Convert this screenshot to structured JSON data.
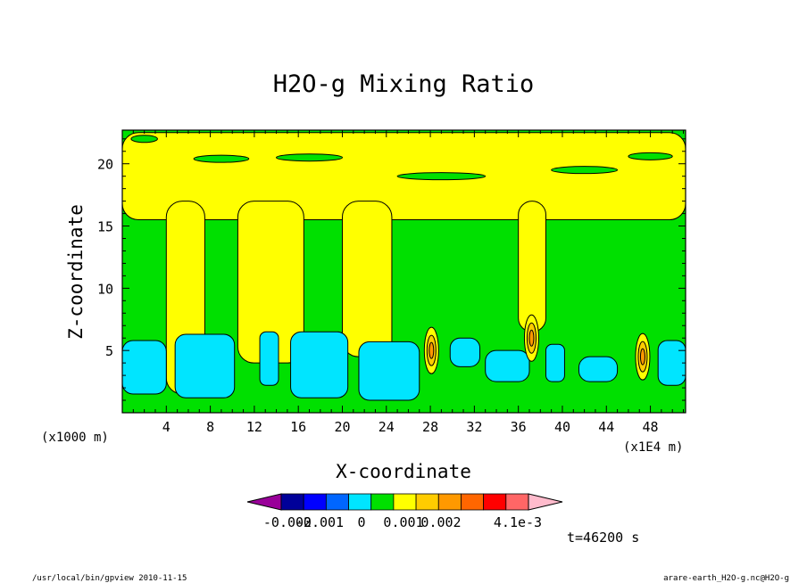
{
  "chart_data": {
    "type": "heatmap",
    "title": "H2O-g Mixing Ratio",
    "xlabel": "X-coordinate",
    "ylabel": "Z-coordinate",
    "x_unit": "(x1E4 m)",
    "y_unit": "(x1000 m)",
    "xlim": [
      0,
      51.2
    ],
    "ylim": [
      0,
      22.7
    ],
    "x_ticks": [
      4,
      8,
      12,
      16,
      20,
      24,
      28,
      32,
      36,
      40,
      44,
      48
    ],
    "y_ticks": [
      5,
      10,
      15,
      20
    ],
    "x_tick_labels": [
      "4",
      "8",
      "12",
      "16",
      "20",
      "24",
      "28",
      "32",
      "36",
      "40",
      "44",
      "48"
    ],
    "y_tick_labels": [
      "5",
      "10",
      "15",
      "20"
    ],
    "colorbar": {
      "labels": [
        {
          "text": "-0.002",
          "value": -0.002
        },
        {
          "text": "-0.001",
          "value": -0.001
        },
        {
          "text": "0",
          "value": 0
        },
        {
          "text": "0.001",
          "value": 0.001
        },
        {
          "text": "0.002",
          "value": 0.002
        },
        {
          "text": "4.1e-3",
          "value": 0.0041
        }
      ],
      "colors": [
        "#990099",
        "#000099",
        "#0000ff",
        "#0066ff",
        "#00e5ff",
        "#00e000",
        "#ffff00",
        "#ffcc00",
        "#ff9900",
        "#ff6600",
        "#ff0000",
        "#ff6666",
        "#ffbbcc"
      ]
    },
    "regions": [
      {
        "level": "background",
        "color": "#00e000",
        "description_level": 0
      },
      {
        "level": "cyan",
        "color": "#00e5ff",
        "blobs": [
          {
            "x": [
              0,
              4
            ],
            "z": [
              1.5,
              5.8
            ]
          },
          {
            "x": [
              4.8,
              10.2
            ],
            "z": [
              1.2,
              6.3
            ]
          },
          {
            "x": [
              12.5,
              14.2
            ],
            "z": [
              2.2,
              6.5
            ]
          },
          {
            "x": [
              15.3,
              20.5
            ],
            "z": [
              1.2,
              6.5
            ]
          },
          {
            "x": [
              21.5,
              27.0
            ],
            "z": [
              1.0,
              5.7
            ]
          },
          {
            "x": [
              29.8,
              32.5
            ],
            "z": [
              3.7,
              6.0
            ]
          },
          {
            "x": [
              33.0,
              37.0
            ],
            "z": [
              2.5,
              5.0
            ]
          },
          {
            "x": [
              38.5,
              40.2
            ],
            "z": [
              2.5,
              5.5
            ]
          },
          {
            "x": [
              41.5,
              45.0
            ],
            "z": [
              2.5,
              4.5
            ]
          },
          {
            "x": [
              48.7,
              51.2
            ],
            "z": [
              2.2,
              5.8
            ]
          }
        ]
      },
      {
        "level": "yellow",
        "color": "#ffff00",
        "zones": [
          {
            "x": [
              0,
              51.2
            ],
            "z": [
              15.5,
              22.5
            ]
          },
          {
            "x": [
              4.0,
              7.5
            ],
            "z": [
              1.5,
              17.0
            ]
          },
          {
            "x": [
              10.5,
              16.5
            ],
            "z": [
              4.0,
              17.0
            ]
          },
          {
            "x": [
              20.0,
              24.5
            ],
            "z": [
              4.5,
              17.0
            ]
          },
          {
            "x": [
              36.0,
              38.5
            ],
            "z": [
              6.5,
              17.0
            ]
          }
        ]
      },
      {
        "level": "orange",
        "color": "#ffcc00",
        "peaks": [
          {
            "x": 28.1,
            "z": 5.0
          },
          {
            "x": 37.2,
            "z": 6.0
          },
          {
            "x": 47.3,
            "z": 4.5
          }
        ]
      }
    ]
  },
  "annotations": {
    "time": "t=46200 s",
    "footer_left": "/usr/local/bin/gpview  2010-11-15",
    "footer_right": "arare-earth_H2O-g.nc@H2O-g"
  }
}
